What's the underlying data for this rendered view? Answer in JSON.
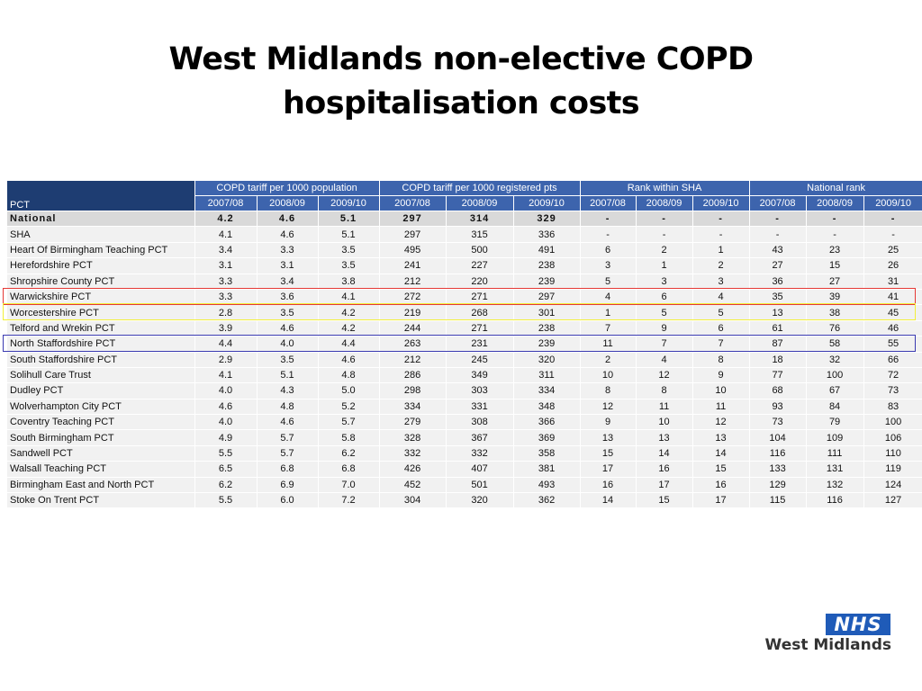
{
  "title": {
    "line1": "West Midlands non-elective COPD",
    "line2": "hospitalisation costs"
  },
  "table": {
    "groups": [
      "COPD tariff per 1000 population",
      "COPD tariff per 1000 registered pts",
      "Rank within SHA",
      "National rank"
    ],
    "pct_header": "PCT",
    "years": [
      "2007/08",
      "2008/09",
      "2009/10",
      "2007/08",
      "2008/09",
      "2009/10",
      "2007/08",
      "2008/09",
      "2009/10",
      "2007/08",
      "2008/09",
      "2009/10"
    ],
    "rows": [
      [
        "National",
        "4.2",
        "4.6",
        "5.1",
        "297",
        "314",
        "329",
        "-",
        "-",
        "-",
        "-",
        "-",
        "-"
      ],
      [
        "SHA",
        "4.1",
        "4.6",
        "5.1",
        "297",
        "315",
        "336",
        "-",
        "-",
        "-",
        "-",
        "-",
        "-"
      ],
      [
        "Heart Of Birmingham Teaching PCT",
        "3.4",
        "3.3",
        "3.5",
        "495",
        "500",
        "491",
        "6",
        "2",
        "1",
        "43",
        "23",
        "25"
      ],
      [
        "Herefordshire PCT",
        "3.1",
        "3.1",
        "3.5",
        "241",
        "227",
        "238",
        "3",
        "1",
        "2",
        "27",
        "15",
        "26"
      ],
      [
        "Shropshire County PCT",
        "3.3",
        "3.4",
        "3.8",
        "212",
        "220",
        "239",
        "5",
        "3",
        "3",
        "36",
        "27",
        "31"
      ],
      [
        "Warwickshire PCT",
        "3.3",
        "3.6",
        "4.1",
        "272",
        "271",
        "297",
        "4",
        "6",
        "4",
        "35",
        "39",
        "41"
      ],
      [
        "Worcestershire PCT",
        "2.8",
        "3.5",
        "4.2",
        "219",
        "268",
        "301",
        "1",
        "5",
        "5",
        "13",
        "38",
        "45"
      ],
      [
        "Telford and Wrekin PCT",
        "3.9",
        "4.6",
        "4.2",
        "244",
        "271",
        "238",
        "7",
        "9",
        "6",
        "61",
        "76",
        "46"
      ],
      [
        "North Staffordshire PCT",
        "4.4",
        "4.0",
        "4.4",
        "263",
        "231",
        "239",
        "11",
        "7",
        "7",
        "87",
        "58",
        "55"
      ],
      [
        "South Staffordshire PCT",
        "2.9",
        "3.5",
        "4.6",
        "212",
        "245",
        "320",
        "2",
        "4",
        "8",
        "18",
        "32",
        "66"
      ],
      [
        "Solihull Care Trust",
        "4.1",
        "5.1",
        "4.8",
        "286",
        "349",
        "311",
        "10",
        "12",
        "9",
        "77",
        "100",
        "72"
      ],
      [
        "Dudley PCT",
        "4.0",
        "4.3",
        "5.0",
        "298",
        "303",
        "334",
        "8",
        "8",
        "10",
        "68",
        "67",
        "73"
      ],
      [
        "Wolverhampton City PCT",
        "4.6",
        "4.8",
        "5.2",
        "334",
        "331",
        "348",
        "12",
        "11",
        "11",
        "93",
        "84",
        "83"
      ],
      [
        "Coventry Teaching PCT",
        "4.0",
        "4.6",
        "5.7",
        "279",
        "308",
        "366",
        "9",
        "10",
        "12",
        "73",
        "79",
        "100"
      ],
      [
        "South Birmingham PCT",
        "4.9",
        "5.7",
        "5.8",
        "328",
        "367",
        "369",
        "13",
        "13",
        "13",
        "104",
        "109",
        "106"
      ],
      [
        "Sandwell PCT",
        "5.5",
        "5.7",
        "6.2",
        "332",
        "332",
        "358",
        "15",
        "14",
        "14",
        "116",
        "111",
        "110"
      ],
      [
        "Walsall Teaching PCT",
        "6.5",
        "6.8",
        "6.8",
        "426",
        "407",
        "381",
        "17",
        "16",
        "15",
        "133",
        "131",
        "119"
      ],
      [
        "Birmingham East and North PCT",
        "6.2",
        "6.9",
        "7.0",
        "452",
        "501",
        "493",
        "16",
        "17",
        "16",
        "129",
        "132",
        "124"
      ],
      [
        "Stoke On Trent PCT",
        "5.5",
        "6.0",
        "7.2",
        "304",
        "320",
        "362",
        "14",
        "15",
        "17",
        "115",
        "116",
        "127"
      ]
    ],
    "highlights": [
      {
        "row": "Herefordshire PCT",
        "color": "#e53935"
      },
      {
        "row": "Shropshire County PCT",
        "color": "#f2ef3a"
      },
      {
        "row": "Worcestershire PCT",
        "color": "#3a3ab0"
      }
    ]
  },
  "logo": {
    "nhs": "NHS",
    "region": "West Midlands"
  }
}
